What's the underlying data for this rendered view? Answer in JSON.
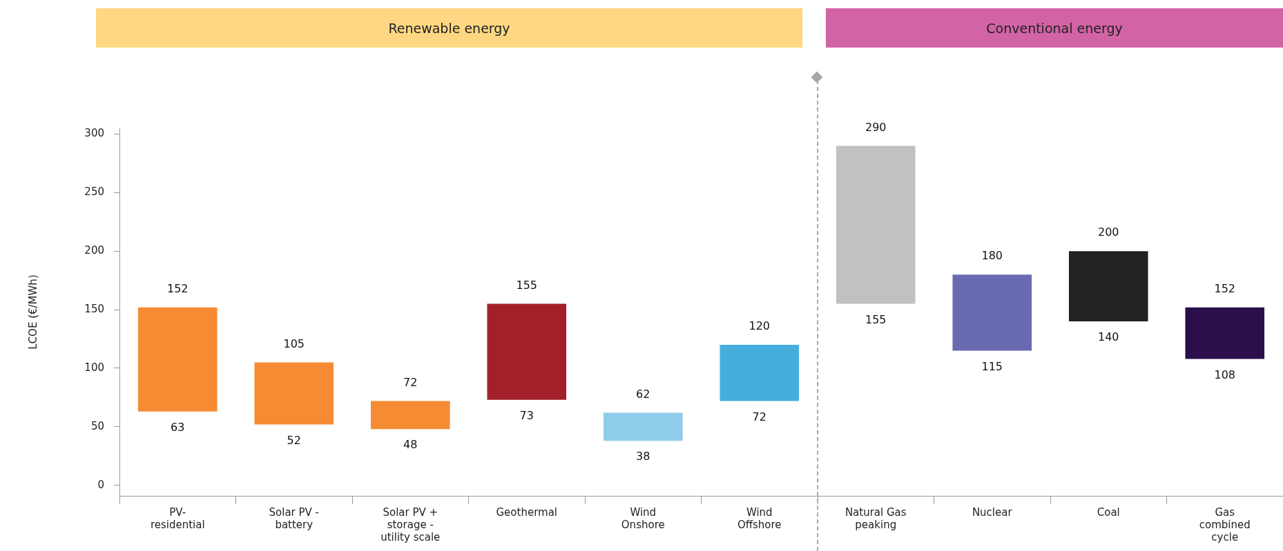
{
  "chart_data": {
    "type": "bar",
    "ylabel": "LCOE (€/MWh)",
    "categories": [
      "PV-\nresidential",
      "Solar PV -\nbattery",
      "Solar PV +\nstorage -\nutility scale",
      "Geothermal",
      "Wind\nOnshore",
      "Wind\nOffshore",
      "Natural Gas\npeaking",
      "Nuclear",
      "Coal",
      "Gas\ncombined\ncycle"
    ],
    "base": [
      63,
      52,
      48,
      73,
      38,
      72,
      155,
      115,
      140,
      108
    ],
    "values": [
      89,
      53,
      24,
      82,
      24,
      48,
      135,
      65,
      60,
      44
    ],
    "colors": [
      "#f68b33",
      "#f68b33",
      "#f68b33",
      "#a31f2a",
      "#8ecce9",
      "#45aedd",
      "#c1c1c1",
      "#6a6ab0",
      "#222222",
      "#2b0f4a"
    ],
    "ylim": [
      -9,
      305
    ],
    "yticks": [
      0,
      50,
      100,
      150,
      200,
      250,
      300
    ],
    "grid": false,
    "legend": false,
    "annotations": [
      "Renewable energy",
      "Conventional energy",
      {
        "text": "152",
        "x": "PV-\nresidential",
        "y": 152
      },
      {
        "text": "63",
        "x": "PV-\nresidential",
        "y": 63
      },
      {
        "text": "105",
        "x": "Solar PV -\nbattery",
        "y": 105
      },
      {
        "text": "52",
        "x": "Solar PV -\nbattery",
        "y": 52
      },
      {
        "text": "72",
        "x": "Solar PV +\nstorage -\nutility scale",
        "y": 72
      },
      {
        "text": "48",
        "x": "Solar PV +\nstorage -\nutility scale",
        "y": 48
      },
      {
        "text": "155",
        "x": "Geothermal",
        "y": 155
      },
      {
        "text": "73",
        "x": "Geothermal",
        "y": 73
      },
      {
        "text": "62",
        "x": "Wind\nOnshore",
        "y": 62
      },
      {
        "text": "38",
        "x": "Wind\nOnshore",
        "y": 38
      },
      {
        "text": "120",
        "x": "Wind\nOffshore",
        "y": 120
      },
      {
        "text": "72",
        "x": "Wind\nOffshore",
        "y": 72
      },
      {
        "text": "290",
        "x": "Natural Gas\npeaking",
        "y": 290
      },
      {
        "text": "155",
        "x": "Natural Gas\npeaking",
        "y": 155
      },
      {
        "text": "180",
        "x": "Nuclear",
        "y": 180
      },
      {
        "text": "115",
        "x": "Nuclear",
        "y": 115
      },
      {
        "text": "200",
        "x": "Coal",
        "y": 200
      },
      {
        "text": "140",
        "x": "Coal",
        "y": 140
      },
      {
        "text": "152",
        "x": "Gas\ncombined\ncycle",
        "y": 152
      },
      {
        "text": "108",
        "x": "Gas\ncombined\ncycle",
        "y": 108
      }
    ]
  }
}
